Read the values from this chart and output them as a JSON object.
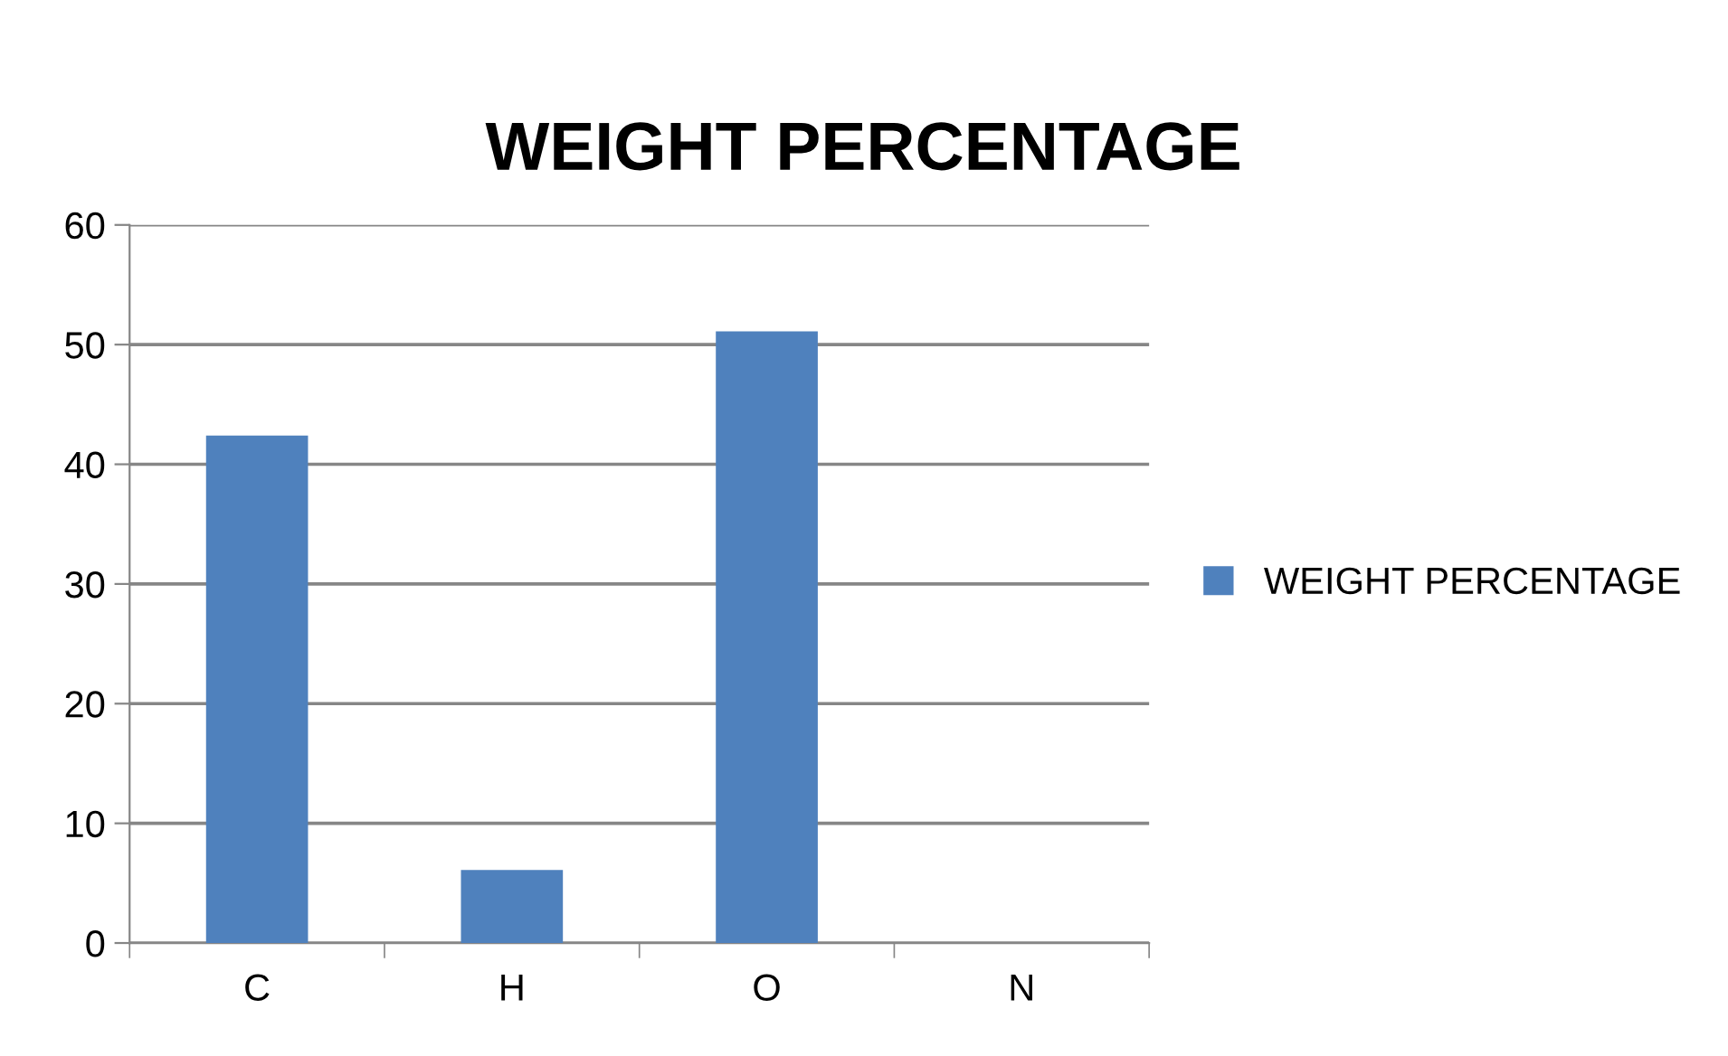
{
  "chart_data": {
    "type": "bar",
    "title": "WEIGHT PERCENTAGE",
    "categories": [
      "C",
      "H",
      "O",
      "N"
    ],
    "series": [
      {
        "name": "WEIGHT PERCENTAGE",
        "color": "#4f81bd",
        "values": [
          42.4,
          6.1,
          51.1,
          0
        ]
      }
    ],
    "ylim": [
      0,
      60
    ],
    "yticks": [
      0,
      10,
      20,
      30,
      40,
      50,
      60
    ],
    "grid": "y",
    "legend": "right"
  }
}
